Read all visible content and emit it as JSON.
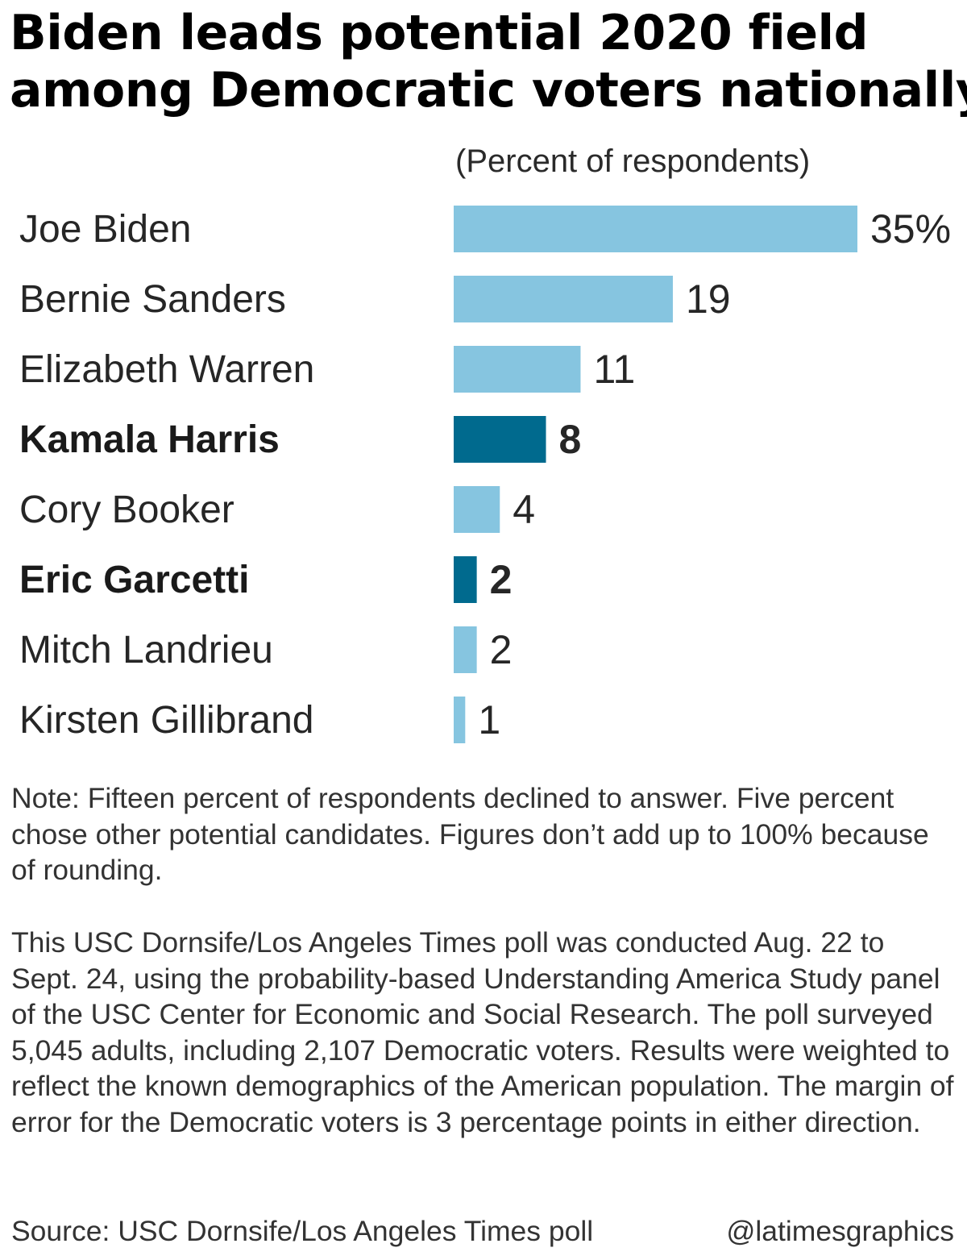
{
  "title_line1": "Biden leads potential 2020 field",
  "title_line2": "among Democratic voters nationally",
  "subtitle": "(Percent of respondents)",
  "chart_data": {
    "type": "bar",
    "orientation": "horizontal",
    "categories": [
      "Joe Biden",
      "Bernie Sanders",
      "Elizabeth Warren",
      "Kamala Harris",
      "Cory Booker",
      "Eric Garcetti",
      "Mitch Landrieu",
      "Kirsten Gillibrand"
    ],
    "values": [
      35,
      19,
      11,
      8,
      4,
      2,
      2,
      1
    ],
    "value_labels": [
      "35%",
      "19",
      "11",
      "8",
      "4",
      "2",
      "2",
      "1"
    ],
    "highlighted": [
      false,
      false,
      false,
      true,
      false,
      true,
      false,
      false
    ],
    "unit": "Percent of respondents",
    "colors": {
      "default": "#86c5e0",
      "highlight": "#006a8e"
    },
    "xlim": [
      0,
      35
    ],
    "grid": false,
    "legend": "none"
  },
  "note": "Note: Fifteen percent of respondents declined to answer. Five percent chose other potential candidates. Figures don’t add up to 100% because of rounding.",
  "methodology": "This USC Dornsife/Los Angeles Times poll was conducted Aug. 22 to Sept. 24, using the probability-based Understanding America Study panel of the USC Center for Economic and Social Research. The poll surveyed 5,045 adults, including 2,107 Democratic voters. Results were weighted to reflect the known demographics of the American population. The margin of error for the Democratic voters is 3 percentage points in either direction.",
  "source": "Source: USC Dornsife/Los Angeles Times poll",
  "credit": "@latimesgraphics"
}
